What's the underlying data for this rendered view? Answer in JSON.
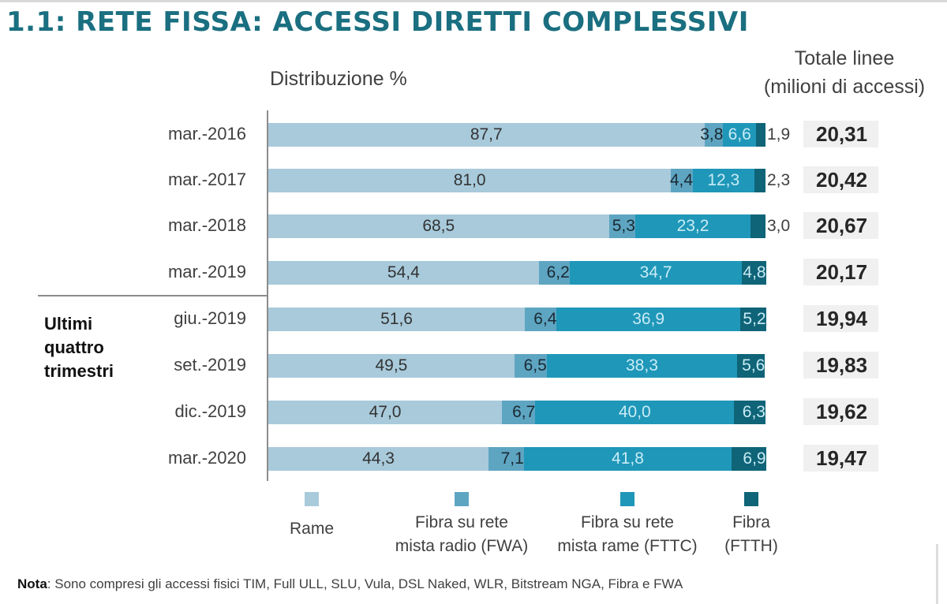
{
  "header": {
    "title": "1.1: RETE FISSA: ACCESSI DIRETTI COMPLESSIVI",
    "subtitle": "Distribuzione %",
    "totals_title_line1": "Totale linee",
    "totals_title_line2": "(milioni di accessi)"
  },
  "group_label": [
    "Ultimi",
    "quattro",
    "trimestri"
  ],
  "colors": {
    "rame": "#a8cadb",
    "fwa": "#5ea5c2",
    "fttc": "#1f97b9",
    "ftth": "#0f6478"
  },
  "chart_data": {
    "type": "bar",
    "orientation": "horizontal",
    "stacked": true,
    "title": "1.1: RETE FISSA: ACCESSI DIRETTI COMPLESSIVI",
    "subtitle": "Distribuzione %",
    "xlabel": "",
    "ylabel": "",
    "xlim": [
      0,
      100
    ],
    "grid": false,
    "legend_position": "bottom",
    "categories": [
      "mar.-2016",
      "mar.-2017",
      "mar.-2018",
      "mar.-2019",
      "giu.-2019",
      "set.-2019",
      "dic.-2019",
      "mar.-2020"
    ],
    "series": [
      {
        "name": "Rame",
        "key": "rame",
        "values": [
          87.7,
          81.0,
          68.5,
          54.4,
          51.6,
          49.5,
          47.0,
          44.3
        ],
        "labels": [
          "87,7",
          "81,0",
          "68,5",
          "54,4",
          "51,6",
          "49,5",
          "47,0",
          "44,3"
        ]
      },
      {
        "name": "Fibra su rete mista radio (FWA)",
        "key": "fwa",
        "values": [
          3.8,
          4.4,
          5.3,
          6.2,
          6.4,
          6.5,
          6.7,
          7.1
        ],
        "labels": [
          "3,8",
          "4,4",
          "5,3",
          "6,2",
          "6,4",
          "6,5",
          "6,7",
          "7,1"
        ]
      },
      {
        "name": "Fibra su rete mista rame (FTTC)",
        "key": "fttc",
        "values": [
          6.6,
          12.3,
          23.2,
          34.7,
          36.9,
          38.3,
          40.0,
          41.8
        ],
        "labels": [
          "6,6",
          "12,3",
          "23,2",
          "34,7",
          "36,9",
          "38,3",
          "40,0",
          "41,8"
        ]
      },
      {
        "name": "Fibra (FTTH)",
        "key": "ftth",
        "values": [
          1.9,
          2.3,
          3.0,
          4.8,
          5.2,
          5.6,
          6.3,
          6.9
        ],
        "labels": [
          "1,9",
          "2,3",
          "3,0",
          "4,8",
          "5,2",
          "5,6",
          "6,3",
          "6,9"
        ]
      }
    ],
    "totals_title": "Totale linee (milioni di accessi)",
    "totals": [
      20.31,
      20.42,
      20.67,
      20.17,
      19.94,
      19.83,
      19.62,
      19.47
    ],
    "totals_labels": [
      "20,31",
      "20,42",
      "20,67",
      "20,17",
      "19,94",
      "19,83",
      "19,62",
      "19,47"
    ],
    "annotation": "Ultimi quattro trimestri"
  },
  "legend": [
    {
      "key": "rame",
      "line1": "Rame",
      "line2": ""
    },
    {
      "key": "fwa",
      "line1": "Fibra su rete",
      "line2": "mista radio (FWA)"
    },
    {
      "key": "fttc",
      "line1": "Fibra su rete",
      "line2": "mista rame (FTTC)"
    },
    {
      "key": "ftth",
      "line1": "Fibra",
      "line2": "(FTTH)"
    }
  ],
  "note": {
    "label": "Nota",
    "text": ": Sono compresi gli accessi fisici TIM, Full ULL, SLU, Vula, DSL Naked, WLR, Bitstream NGA, Fibra e FWA"
  }
}
